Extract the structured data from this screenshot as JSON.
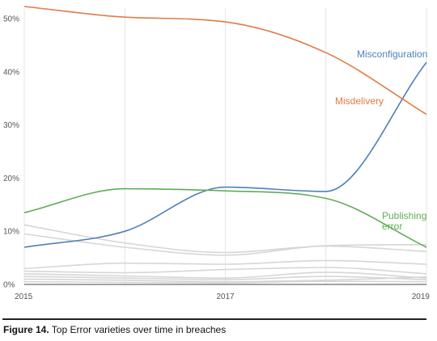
{
  "chart_data": {
    "type": "line",
    "x_ticks": [
      "2015",
      "2017",
      "2019"
    ],
    "y_ticks": [
      "0%",
      "10%",
      "20%",
      "30%",
      "40%",
      "50%"
    ],
    "ylim": [
      0,
      52
    ],
    "xlim": [
      2015,
      2019
    ],
    "grid": "vertical lines at each year",
    "x": [
      2015,
      2016,
      2017,
      2018,
      2019
    ],
    "series": [
      {
        "name": "Misconfiguration",
        "color": "#4f80b8",
        "values": [
          7,
          10,
          18.3,
          17.5,
          41.8
        ]
      },
      {
        "name": "Misdelivery",
        "color": "#e07b45",
        "values": [
          52.3,
          50.3,
          49.4,
          43.6,
          32
        ]
      },
      {
        "name": "Publishing error",
        "label_lines": [
          "Publishing",
          "error"
        ],
        "color": "#5fad57",
        "values": [
          13.5,
          18,
          17.6,
          16.2,
          7
        ]
      }
    ],
    "background_series": [
      {
        "color": "#d6d6d6",
        "values": [
          11.2,
          7.8,
          6.0,
          7.2,
          6.2
        ]
      },
      {
        "color": "#d6d6d6",
        "values": [
          9.5,
          7.0,
          5.5,
          7.3,
          7.5
        ]
      },
      {
        "color": "#d6d6d6",
        "values": [
          3.0,
          4.0,
          3.8,
          4.5,
          3.8
        ]
      },
      {
        "color": "#d6d6d6",
        "values": [
          2.5,
          2.2,
          2.8,
          3.2,
          2.0
        ]
      },
      {
        "color": "#d6d6d6",
        "values": [
          2.0,
          1.6,
          1.2,
          2.3,
          1.2
        ]
      },
      {
        "color": "#d6d6d6",
        "values": [
          1.5,
          1.2,
          0.9,
          1.5,
          0.9
        ]
      },
      {
        "color": "#d6d6d6",
        "values": [
          1.0,
          0.8,
          0.5,
          0.8,
          1.4
        ]
      },
      {
        "color": "#d6d6d6",
        "values": [
          0.5,
          0.4,
          0.3,
          0.6,
          0.5
        ]
      }
    ]
  },
  "caption": {
    "figure_number": "Figure 14.",
    "text": " Top Error varieties over time in breaches"
  }
}
